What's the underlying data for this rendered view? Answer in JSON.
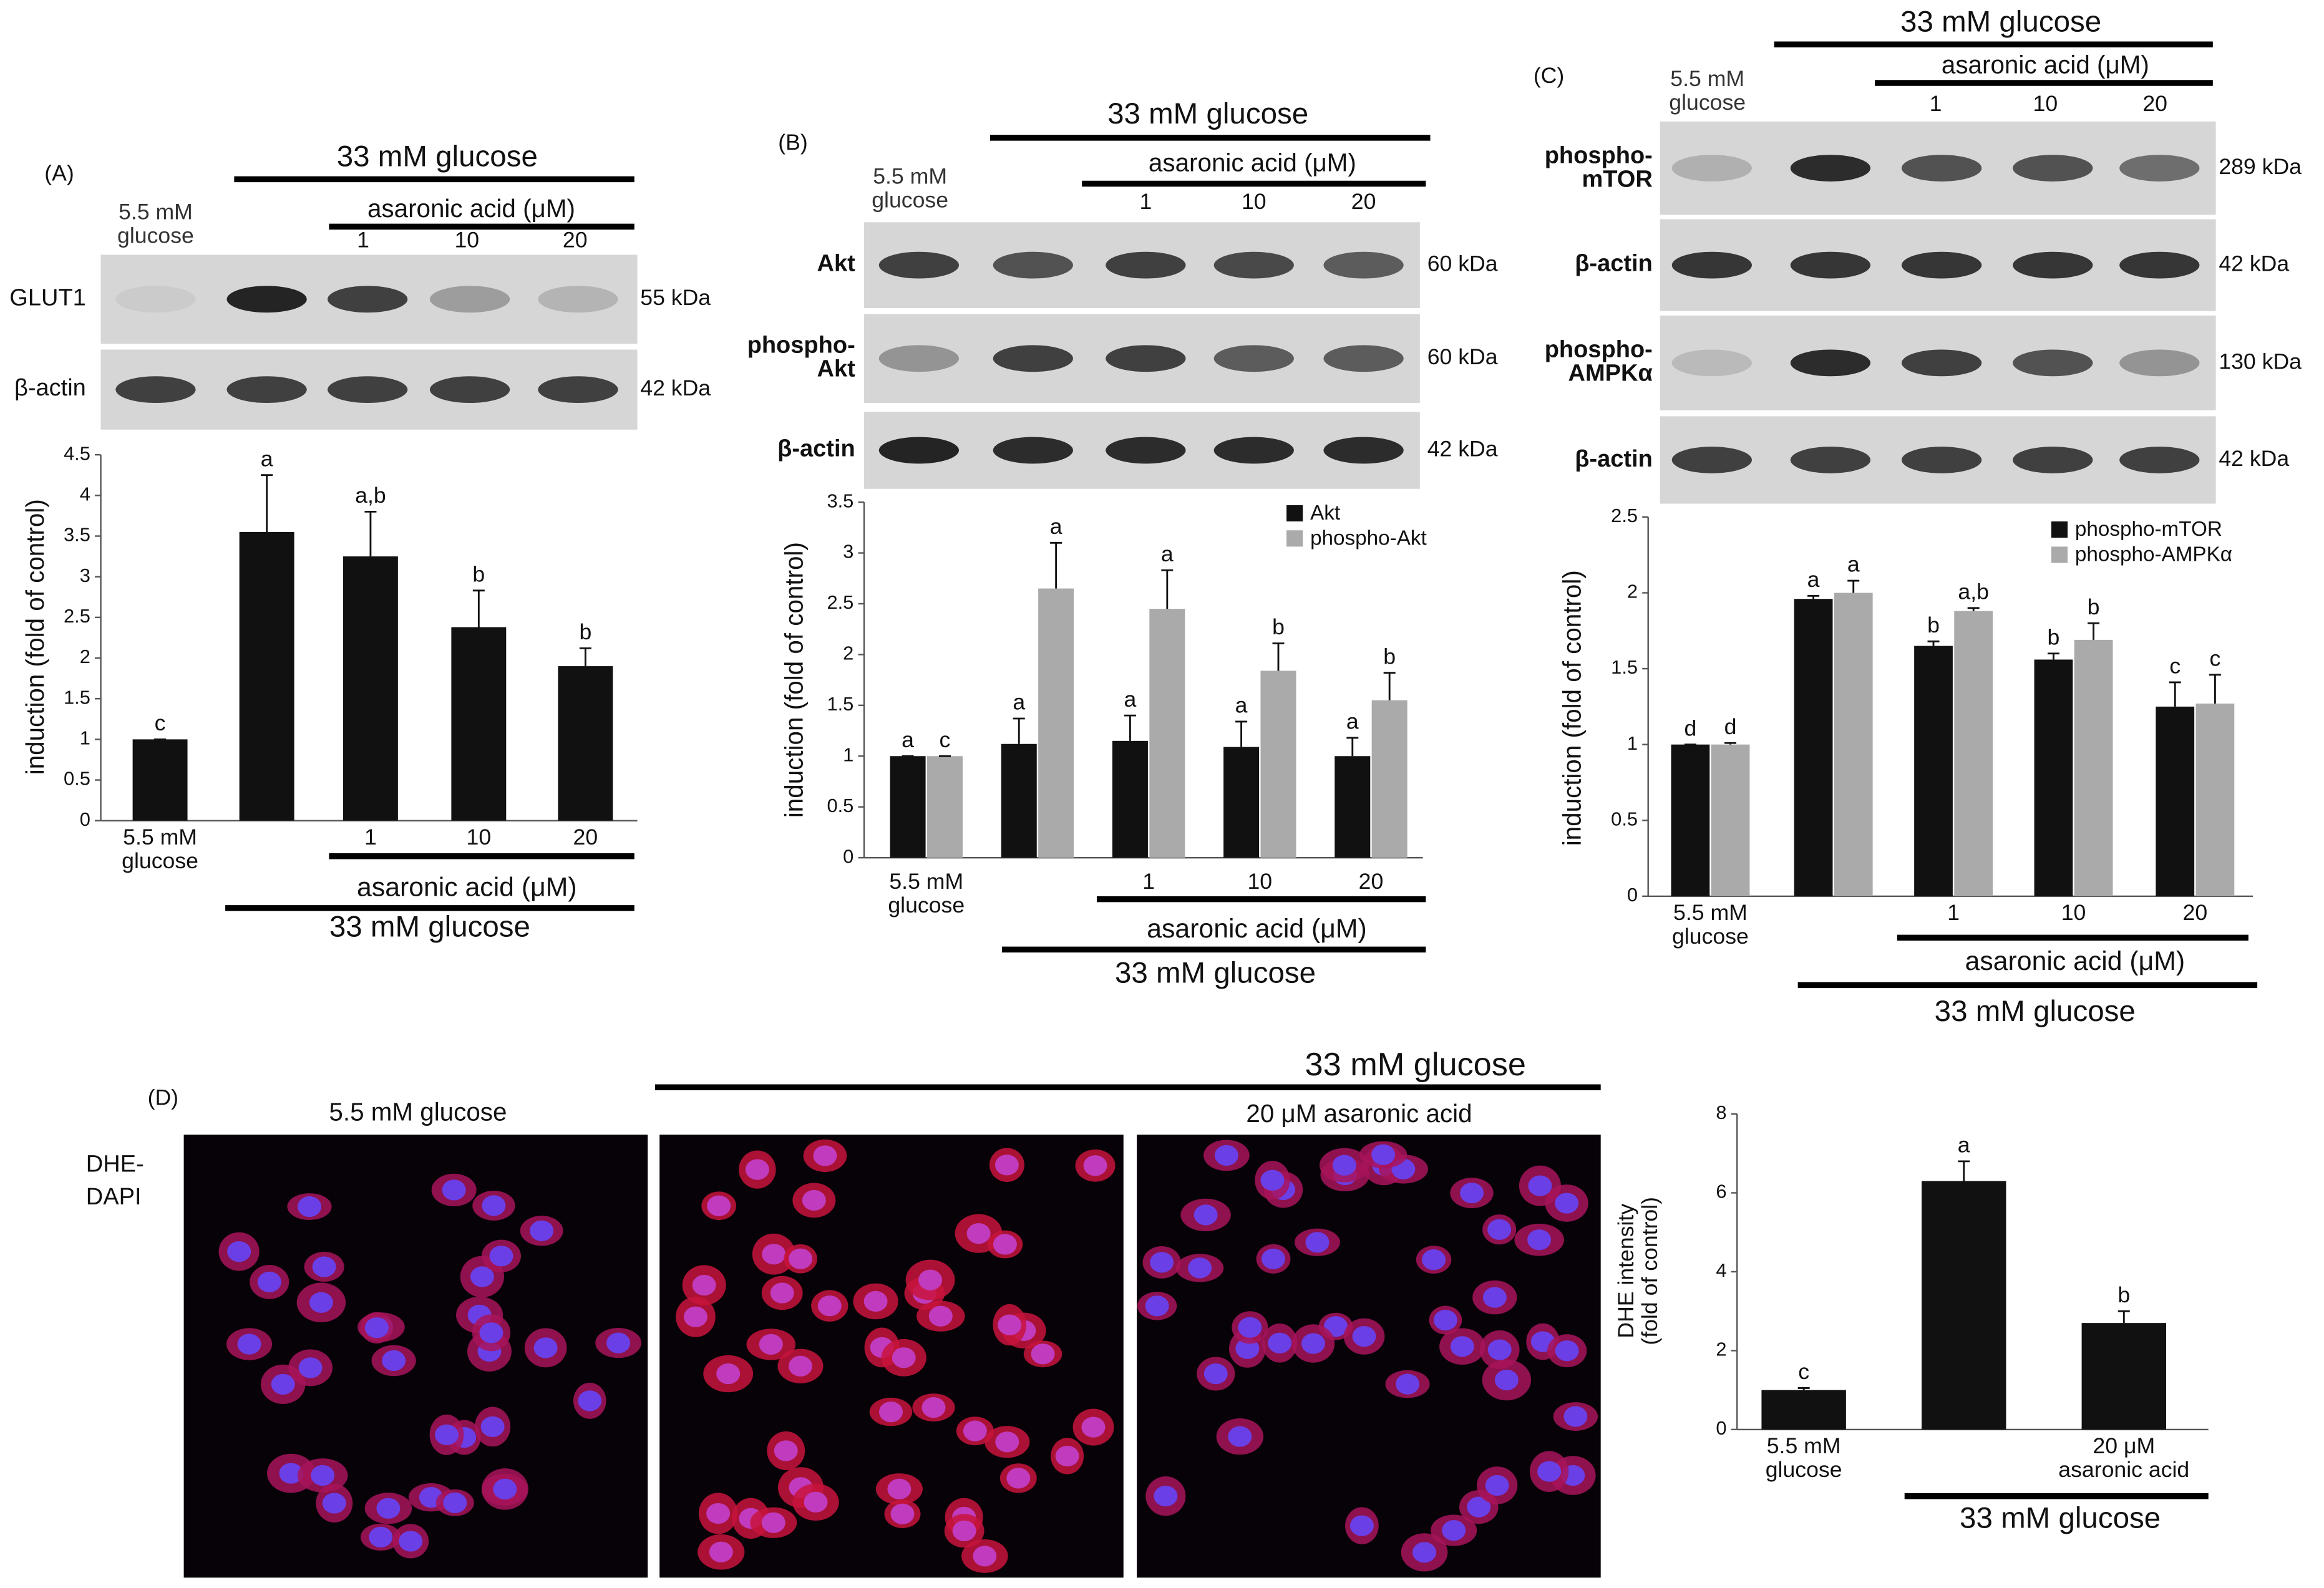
{
  "chart_data": [
    {
      "type": "bar",
      "panel_label": "(A)",
      "header": {
        "control": "5.5 mM glucose",
        "group": "33 mM glucose",
        "treatment": "asaronic acid (μM)",
        "doses": [
          "1",
          "10",
          "20"
        ]
      },
      "blots": [
        {
          "label": "GLUT1",
          "size": "55 kDa"
        },
        {
          "label": "β-actin",
          "size": "42 kDa"
        }
      ],
      "y_label": "induction (fold of control)",
      "categories": [
        "5.5 mM glucose",
        null,
        "1",
        "10",
        "20"
      ],
      "x_annotations": {
        "treatment": "asaronic acid (μM)",
        "group": "33 mM glucose"
      },
      "values": [
        1,
        3.55,
        3.25,
        2.38,
        1.9
      ],
      "errors": [
        0,
        0.7,
        0.55,
        0.45,
        0.22
      ],
      "letters": [
        "c",
        "a",
        "a,b",
        "b",
        "b"
      ],
      "color": "#111111",
      "ylim": [
        0,
        4.5
      ],
      "yticks": [
        0,
        0.5,
        1,
        1.5,
        2,
        2.5,
        3,
        3.5,
        4,
        4.5
      ]
    },
    {
      "type": "bar",
      "panel_label": "(B)",
      "header": {
        "control": "5.5 mM glucose",
        "group": "33 mM glucose",
        "treatment": "asaronic acid (μM)",
        "doses": [
          "1",
          "10",
          "20"
        ]
      },
      "blots": [
        {
          "label": "Akt",
          "size": "60 kDa"
        },
        {
          "label": "phospho-Akt",
          "size": "60 kDa"
        },
        {
          "label": "β-actin",
          "size": "42 kDa"
        }
      ],
      "y_label": "induction (fold of control)",
      "categories": [
        "5.5 mM glucose",
        null,
        "1",
        "10",
        "20"
      ],
      "x_annotations": {
        "treatment": "asaronic acid (μM)",
        "group": "33 mM glucose"
      },
      "series": [
        {
          "name": "Akt",
          "color": "#111111",
          "values": [
            1,
            1.12,
            1.15,
            1.09,
            1.0
          ],
          "errors": [
            0,
            0.25,
            0.25,
            0.25,
            0.18
          ],
          "letters": [
            "a",
            "a",
            "a",
            "a",
            "a"
          ]
        },
        {
          "name": "phospho-Akt",
          "color": "#aaaaaa",
          "values": [
            1,
            2.65,
            2.45,
            1.84,
            1.55
          ],
          "errors": [
            0,
            0.45,
            0.38,
            0.27,
            0.27
          ],
          "letters": [
            "c",
            "a",
            "a",
            "b",
            "b"
          ]
        }
      ],
      "ylim": [
        0,
        3.5
      ],
      "yticks": [
        0,
        0.5,
        1,
        1.5,
        2,
        2.5,
        3,
        3.5
      ],
      "legend": "top-right"
    },
    {
      "type": "bar",
      "panel_label": "(C)",
      "header": {
        "control": "5.5 mM glucose",
        "group": "33 mM glucose",
        "treatment": "asaronic acid (μM)",
        "doses": [
          "1",
          "10",
          "20"
        ]
      },
      "blots": [
        {
          "label": "phospho-mTOR",
          "size": "289 kDa"
        },
        {
          "label": "β-actin",
          "size": "42 kDa"
        },
        {
          "label": "phospho-AMPKα",
          "size": "130 kDa"
        },
        {
          "label": "β-actin",
          "size": "42 kDa"
        }
      ],
      "y_label": "induction (fold of control)",
      "categories": [
        "5.5 mM glucose",
        null,
        "1",
        "10",
        "20"
      ],
      "x_annotations": {
        "treatment": "asaronic acid (μM)",
        "group": "33 mM glucose"
      },
      "series": [
        {
          "name": "phospho-mTOR",
          "color": "#111111",
          "values": [
            1,
            1.96,
            1.65,
            1.56,
            1.25
          ],
          "errors": [
            0,
            0.02,
            0.03,
            0.04,
            0.16
          ],
          "letters": [
            "d",
            "a",
            "b",
            "b",
            "c"
          ]
        },
        {
          "name": "phospho-AMPKα",
          "color": "#aaaaaa",
          "values": [
            1,
            2.0,
            1.88,
            1.69,
            1.27
          ],
          "errors": [
            0.01,
            0.08,
            0.02,
            0.11,
            0.19
          ],
          "letters": [
            "d",
            "a",
            "a,b",
            "b",
            "c"
          ]
        }
      ],
      "ylim": [
        0,
        2.5
      ],
      "yticks": [
        0,
        0.5,
        1,
        1.5,
        2,
        2.5
      ],
      "legend": "top-right"
    },
    {
      "type": "bar",
      "panel_label": "(D)",
      "images": {
        "control": "5.5 mM glucose",
        "group": "33 mM glucose",
        "treatment": "20 μM asaronic acid",
        "stain": "DHE-DAPI"
      },
      "y_label": "DHE intensity (fold of control)",
      "categories": [
        "5.5 mM glucose",
        null,
        "20 μM asaronic acid"
      ],
      "x_annotations": {
        "group": "33 mM glucose"
      },
      "values": [
        1,
        6.3,
        2.7
      ],
      "errors": [
        0.05,
        0.5,
        0.3
      ],
      "letters": [
        "c",
        "a",
        "b"
      ],
      "color": "#111111",
      "ylim": [
        0,
        8
      ],
      "yticks": [
        0,
        2,
        4,
        6,
        8
      ]
    }
  ]
}
